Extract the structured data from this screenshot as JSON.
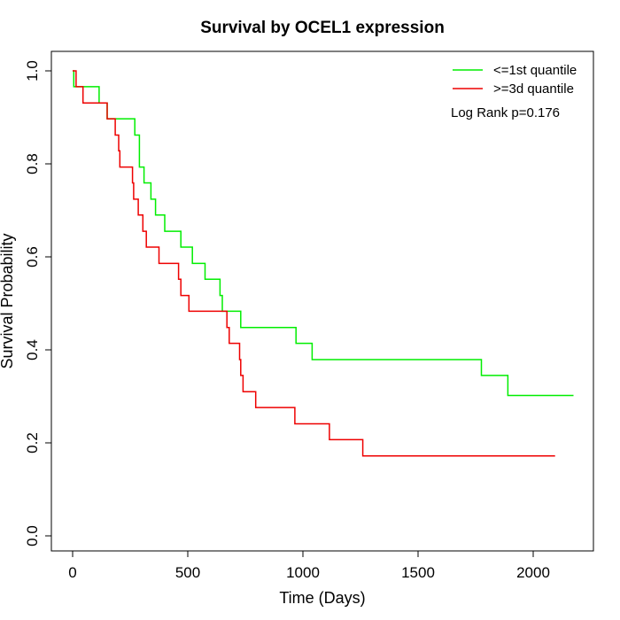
{
  "chart_data": {
    "type": "line",
    "step": true,
    "title": "Survival by OCEL1 expression",
    "xlabel": "Time (Days)",
    "ylabel": "Survival Probability",
    "xlim": [
      0,
      2250
    ],
    "ylim": [
      0,
      1
    ],
    "xticks": [
      0,
      500,
      1000,
      1500,
      2000
    ],
    "yticks": [
      0.0,
      0.2,
      0.4,
      0.6,
      0.8,
      1.0
    ],
    "xtick_labels": [
      "0",
      "500",
      "1000",
      "1500",
      "2000"
    ],
    "ytick_labels": [
      "0.0",
      "0.2",
      "0.4",
      "0.6",
      "0.8",
      "1.0"
    ],
    "grid": false,
    "legend_position": "top-right",
    "annotation": "Log Rank p=0.176",
    "series": [
      {
        "name": "<=1st quantile",
        "color": "#00ee00",
        "x": [
          0,
          5,
          115,
          150,
          270,
          290,
          310,
          340,
          360,
          400,
          470,
          520,
          575,
          640,
          650,
          730,
          970,
          1040,
          1775,
          1890,
          2175
        ],
        "y": [
          1.0,
          0.966,
          0.931,
          0.897,
          0.862,
          0.793,
          0.759,
          0.724,
          0.69,
          0.655,
          0.621,
          0.586,
          0.552,
          0.517,
          0.483,
          0.448,
          0.414,
          0.379,
          0.345,
          0.302,
          0.302
        ]
      },
      {
        "name": ">=3d quantile",
        "color": "#ee0000",
        "x": [
          0,
          15,
          45,
          150,
          185,
          200,
          205,
          260,
          265,
          285,
          305,
          320,
          375,
          460,
          470,
          505,
          670,
          680,
          725,
          730,
          740,
          795,
          965,
          1115,
          1260,
          2095
        ],
        "y": [
          1.0,
          0.966,
          0.931,
          0.897,
          0.862,
          0.828,
          0.793,
          0.759,
          0.724,
          0.69,
          0.655,
          0.621,
          0.586,
          0.552,
          0.517,
          0.483,
          0.448,
          0.414,
          0.379,
          0.345,
          0.31,
          0.276,
          0.241,
          0.207,
          0.172,
          0.172
        ]
      }
    ]
  }
}
